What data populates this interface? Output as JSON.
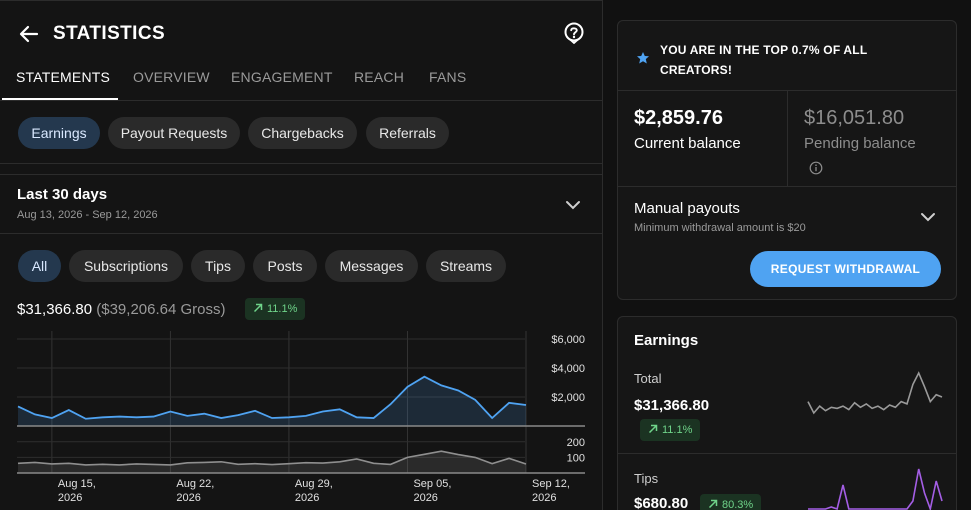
{
  "header": {
    "title": "STATISTICS"
  },
  "tabs": [
    {
      "label": "STATEMENTS",
      "active": true
    },
    {
      "label": "OVERVIEW"
    },
    {
      "label": "ENGAGEMENT"
    },
    {
      "label": "REACH"
    },
    {
      "label": "FANS"
    }
  ],
  "statement_types": [
    {
      "label": "Earnings",
      "active": true
    },
    {
      "label": "Payout Requests"
    },
    {
      "label": "Chargebacks"
    },
    {
      "label": "Referrals"
    }
  ],
  "period": {
    "title": "Last 30 days",
    "range": "Aug 13, 2026 - Sep 12, 2026"
  },
  "filters": [
    {
      "label": "All",
      "active": true
    },
    {
      "label": "Subscriptions"
    },
    {
      "label": "Tips"
    },
    {
      "label": "Posts"
    },
    {
      "label": "Messages"
    },
    {
      "label": "Streams"
    }
  ],
  "summary": {
    "net": "$31,366.80",
    "gross": "($39,206.64 Gross)",
    "change": "11.1%"
  },
  "chart_data": {
    "type": "area",
    "main": {
      "y_ticks": [
        "$6,000",
        "$4,000",
        "$2,000"
      ],
      "ylim": [
        0,
        6000
      ],
      "values": [
        1350,
        800,
        550,
        1100,
        500,
        600,
        650,
        600,
        650,
        1000,
        700,
        850,
        550,
        750,
        1050,
        550,
        600,
        700,
        1000,
        1150,
        600,
        550,
        1500,
        2700,
        3400,
        2800,
        2450,
        1800,
        550,
        1600,
        1450
      ]
    },
    "secondary": {
      "y_ticks": [
        "200",
        "100"
      ],
      "ylim": [
        0,
        250
      ],
      "values": [
        62,
        68,
        58,
        62,
        52,
        56,
        52,
        58,
        55,
        52,
        65,
        68,
        72,
        56,
        60,
        54,
        60,
        66,
        64,
        72,
        90,
        62,
        55,
        100,
        120,
        140,
        118,
        100,
        60,
        94,
        58
      ]
    },
    "x_ticks": [
      {
        "index": 2,
        "line1": "Aug 15,",
        "line2": "2026"
      },
      {
        "index": 9,
        "line1": "Aug 22,",
        "line2": "2026"
      },
      {
        "index": 16,
        "line1": "Aug 29,",
        "line2": "2026"
      },
      {
        "index": 23,
        "line1": "Sep 05,",
        "line2": "2026"
      },
      {
        "index": 30,
        "line1": "Sep 12,",
        "line2": "2026"
      }
    ],
    "colors": {
      "main": "#4fa3f2",
      "secondary": "#8f8f8f"
    }
  },
  "banner": {
    "text": "YOU ARE IN THE TOP 0.7% OF ALL CREATORS!"
  },
  "balance": {
    "current_amount": "$2,859.76",
    "current_label": "Current balance",
    "pending_amount": "$16,051.80",
    "pending_label": "Pending balance"
  },
  "payouts": {
    "title": "Manual payouts",
    "subtitle": "Minimum withdrawal amount is $20",
    "button": "REQUEST WITHDRAWAL"
  },
  "earnings": {
    "title": "Earnings",
    "rows": [
      {
        "label": "Total",
        "amount": "$31,366.80",
        "change": "11.1%",
        "spark": [
          30,
          10,
          22,
          14,
          20,
          18,
          22,
          16,
          28,
          20,
          26,
          18,
          22,
          16,
          24,
          20,
          30,
          26,
          60,
          80,
          56,
          30,
          42,
          38
        ]
      },
      {
        "label": "Tips",
        "amount": "$680.80",
        "change": "80.3%",
        "spark": [
          0,
          0,
          0,
          0,
          5,
          0,
          60,
          0,
          0,
          0,
          0,
          0,
          0,
          0,
          0,
          0,
          0,
          0,
          20,
          100,
          40,
          0,
          70,
          20
        ]
      }
    ]
  },
  "colors": {
    "accent": "#4fa3f2",
    "positive": "#6fd48a",
    "background": "#111111",
    "tips_spark": "#a45ee5"
  }
}
